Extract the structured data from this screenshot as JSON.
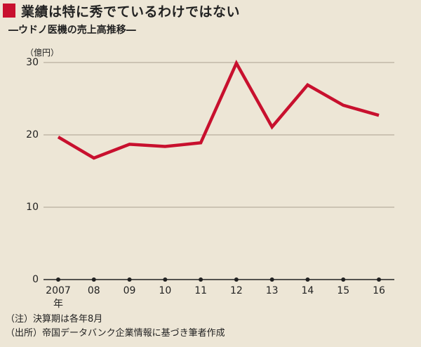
{
  "header": {
    "title": "業績は特に秀でているわけではない",
    "subtitle": "―ウドノ医機の売上高推移―"
  },
  "chart_data": {
    "type": "line",
    "title": "業績は特に秀でているわけではない",
    "subtitle": "―ウドノ医機の売上高推移―",
    "unit_label": "（億円）",
    "categories": [
      "2007",
      "08",
      "09",
      "10",
      "11",
      "12",
      "13",
      "14",
      "15",
      "16"
    ],
    "x_first_suffix": "年",
    "series": [
      {
        "values": [
          19.7,
          16.8,
          18.7,
          18.4,
          18.9,
          29.9,
          21.1,
          26.9,
          24.1,
          22.7
        ]
      }
    ],
    "yticks": [
      0,
      10,
      20,
      30
    ],
    "ylim": [
      0,
      30
    ],
    "grid": true,
    "legend": "none",
    "colors": {
      "line": "#c8102e",
      "grid": "#aaa090",
      "axis": "#222222",
      "background": "#ede6d6"
    }
  },
  "notes": [
    "（注）決算期は各年8月",
    "（出所）帝国データバンク企業情報に基づき筆者作成"
  ]
}
